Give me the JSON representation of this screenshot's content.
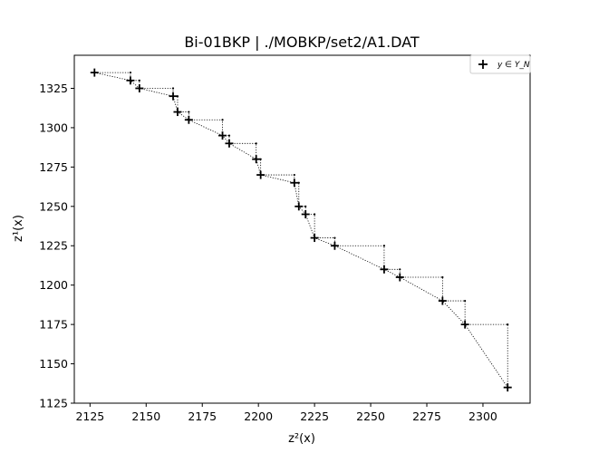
{
  "chart_data": {
    "type": "scatter",
    "title": "Bi-01BKP | ./MOBKP/set2/A1.DAT",
    "xlabel": "z²(x)",
    "ylabel": "z¹(x)",
    "xlim": [
      2118,
      2321
    ],
    "ylim": [
      1125,
      1346
    ],
    "xticks": [
      2125,
      2150,
      2175,
      2200,
      2225,
      2250,
      2275,
      2300
    ],
    "yticks": [
      1125,
      1150,
      1175,
      1200,
      1225,
      1250,
      1275,
      1300,
      1325
    ],
    "legend": {
      "label": "y ∈ Y_N",
      "position": "top-right"
    },
    "grid": false,
    "series": [
      {
        "name": "y ∈ Y_N",
        "marker": "plus",
        "color": "#000000",
        "x": [
          2127,
          2143,
          2147,
          2162,
          2164,
          2169,
          2184,
          2187,
          2199,
          2201,
          2216,
          2218,
          2221,
          2225,
          2234,
          2256,
          2263,
          2282,
          2292,
          2311
        ],
        "y": [
          1335,
          1330,
          1325,
          1320,
          1310,
          1305,
          1295,
          1290,
          1280,
          1270,
          1265,
          1250,
          1245,
          1230,
          1225,
          1210,
          1205,
          1190,
          1175,
          1135
        ]
      }
    ]
  }
}
